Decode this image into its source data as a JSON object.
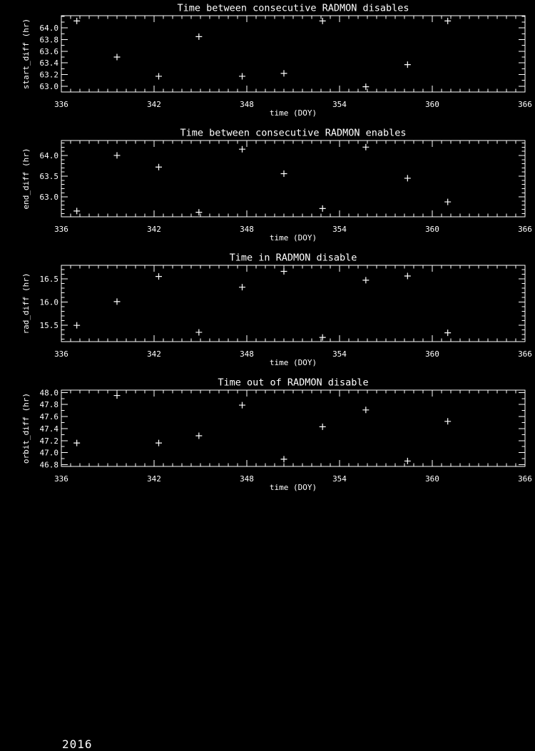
{
  "page": {
    "background": "#000000",
    "foreground": "#ffffff",
    "footer_year": "2016"
  },
  "chart_data": [
    {
      "type": "scatter",
      "title": "Time between consecutive RADMON disables",
      "xlabel": "time (DOY)",
      "ylabel": "start_diff (hr)",
      "marker": "plus",
      "legend": "none",
      "grid": false,
      "xlim": [
        336,
        366
      ],
      "xtick_values": [
        336,
        342,
        348,
        354,
        360,
        366
      ],
      "xtick_labels": [
        "336",
        "342",
        "348",
        "354",
        "360",
        "366"
      ],
      "x_minor_step": 0.6,
      "ylim": [
        62.9,
        64.21
      ],
      "ytick_values": [
        63.0,
        63.2,
        63.4,
        63.6,
        63.8,
        64.0
      ],
      "ytick_labels": [
        "63.0",
        "63.2",
        "63.4",
        "63.6",
        "63.8",
        "64.0"
      ],
      "y_minor_step": 0.1,
      "x": [
        337.0,
        339.6,
        342.3,
        344.9,
        347.7,
        350.4,
        352.9,
        355.7,
        358.4,
        361.0
      ],
      "y": [
        64.12,
        63.5,
        63.17,
        63.85,
        63.17,
        63.22,
        64.12,
        62.99,
        63.37,
        64.12
      ]
    },
    {
      "type": "scatter",
      "title": "Time between consecutive RADMON enables",
      "xlabel": "time (DOY)",
      "ylabel": "end_diff (hr)",
      "marker": "plus",
      "legend": "none",
      "grid": false,
      "xlim": [
        336,
        366
      ],
      "xtick_values": [
        336,
        342,
        348,
        354,
        360,
        366
      ],
      "xtick_labels": [
        "336",
        "342",
        "348",
        "354",
        "360",
        "366"
      ],
      "x_minor_step": 0.6,
      "ylim": [
        62.52,
        64.36
      ],
      "ytick_values": [
        63.0,
        63.5,
        64.0
      ],
      "ytick_labels": [
        "63.0",
        "63.5",
        "64.0"
      ],
      "y_minor_step": 0.1,
      "x": [
        337.0,
        339.6,
        342.3,
        344.9,
        347.7,
        350.4,
        352.9,
        355.7,
        358.4,
        361.0
      ],
      "y": [
        62.66,
        64.0,
        63.72,
        62.63,
        64.15,
        63.56,
        62.72,
        64.2,
        63.45,
        62.88
      ]
    },
    {
      "type": "scatter",
      "title": "Time in RADMON disable",
      "xlabel": "time (DOY)",
      "ylabel": "rad_diff (hr)",
      "marker": "plus",
      "legend": "none",
      "grid": false,
      "xlim": [
        336,
        366
      ],
      "xtick_values": [
        336,
        342,
        348,
        354,
        360,
        366
      ],
      "xtick_labels": [
        "336",
        "342",
        "348",
        "354",
        "360",
        "366"
      ],
      "x_minor_step": 0.6,
      "ylim": [
        15.15,
        16.79
      ],
      "ytick_values": [
        15.5,
        16.0,
        16.5
      ],
      "ytick_labels": [
        "15.5",
        "16.0",
        "16.5"
      ],
      "y_minor_step": 0.1,
      "x": [
        337.0,
        339.6,
        342.3,
        344.9,
        347.7,
        350.4,
        352.9,
        355.7,
        358.4,
        361.0
      ],
      "y": [
        15.5,
        16.01,
        16.55,
        15.35,
        16.32,
        16.66,
        15.24,
        16.47,
        16.56,
        15.34
      ]
    },
    {
      "type": "scatter",
      "title": "Time out of RADMON disable",
      "xlabel": "time (DOY)",
      "ylabel": "orbit_diff (hr)",
      "marker": "plus",
      "legend": "none",
      "grid": false,
      "xlim": [
        336,
        366
      ],
      "xtick_values": [
        336,
        342,
        348,
        354,
        360,
        366
      ],
      "xtick_labels": [
        "336",
        "342",
        "348",
        "354",
        "360",
        "366"
      ],
      "x_minor_step": 0.6,
      "ylim": [
        46.77,
        48.04
      ],
      "ytick_values": [
        46.8,
        47.0,
        47.2,
        47.4,
        47.6,
        47.8,
        48.0
      ],
      "ytick_labels": [
        "46.8",
        "47.0",
        "47.2",
        "47.4",
        "47.6",
        "47.8",
        "48.0"
      ],
      "y_minor_step": 0.1,
      "x": [
        337.0,
        339.6,
        342.3,
        344.9,
        347.7,
        350.4,
        352.9,
        355.7,
        358.4,
        361.0
      ],
      "y": [
        47.16,
        47.95,
        47.16,
        47.28,
        47.79,
        46.89,
        47.43,
        47.71,
        46.86,
        47.52
      ]
    }
  ]
}
